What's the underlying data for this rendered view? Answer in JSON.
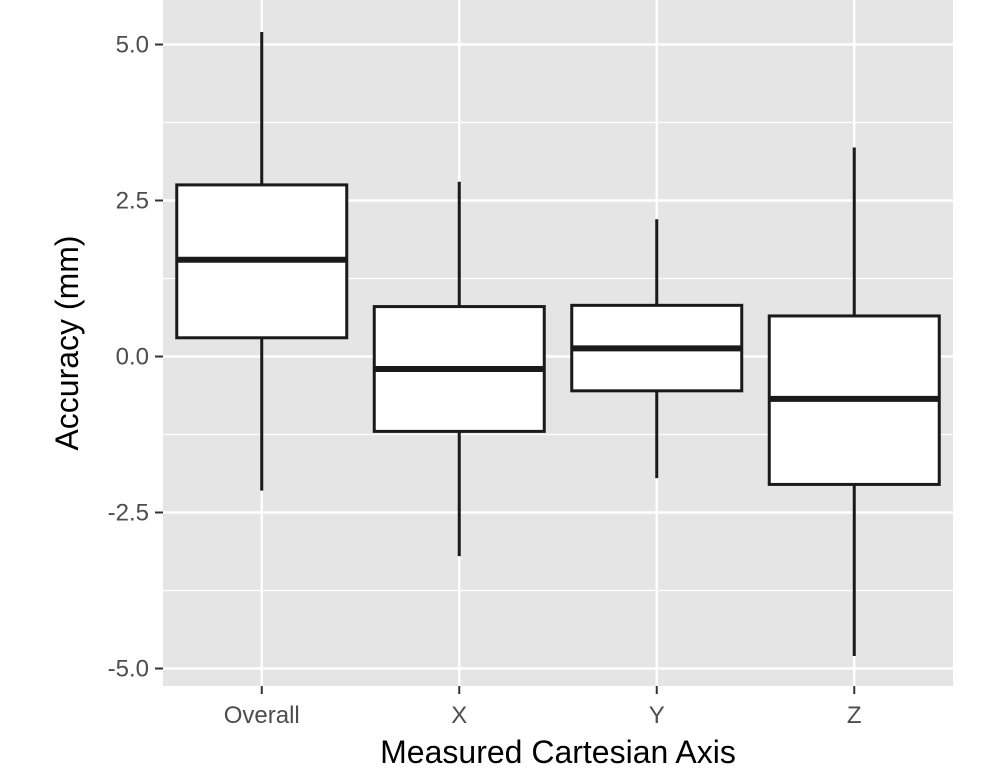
{
  "chart_data": {
    "type": "box",
    "title": "",
    "xlabel": "Measured Cartesian Axis",
    "ylabel": "Accuracy (mm)",
    "categories": [
      "Overall",
      "X",
      "Y",
      "Z"
    ],
    "ylim": [
      -5.3,
      5.3
    ],
    "yticks": [
      5.0,
      2.5,
      0.0,
      -2.5,
      -5.0
    ],
    "ytick_labels": [
      "5.0",
      "2.5",
      "0.0",
      "-2.5",
      "-5.0"
    ],
    "grid": true,
    "legend": "none",
    "boxes": [
      {
        "category": "Overall",
        "whisker_low": -2.15,
        "q1": 0.3,
        "median": 1.55,
        "q3": 2.75,
        "whisker_high": 5.2
      },
      {
        "category": "X",
        "whisker_low": -3.2,
        "q1": -1.2,
        "median": -0.2,
        "q3": 0.8,
        "whisker_high": 2.8
      },
      {
        "category": "Y",
        "whisker_low": -1.95,
        "q1": -0.55,
        "median": 0.13,
        "q3": 0.82,
        "whisker_high": 2.2
      },
      {
        "category": "Z",
        "whisker_low": -4.8,
        "q1": -2.05,
        "median": -0.68,
        "q3": 0.65,
        "whisker_high": 3.35
      }
    ],
    "colors": {
      "panel_background": "#e5e5e5",
      "grid": "#ffffff",
      "box_fill": "#ffffff",
      "box_stroke": "#1a1a1a",
      "tick_text": "#4d4d4d",
      "title_text": "#000000"
    }
  }
}
